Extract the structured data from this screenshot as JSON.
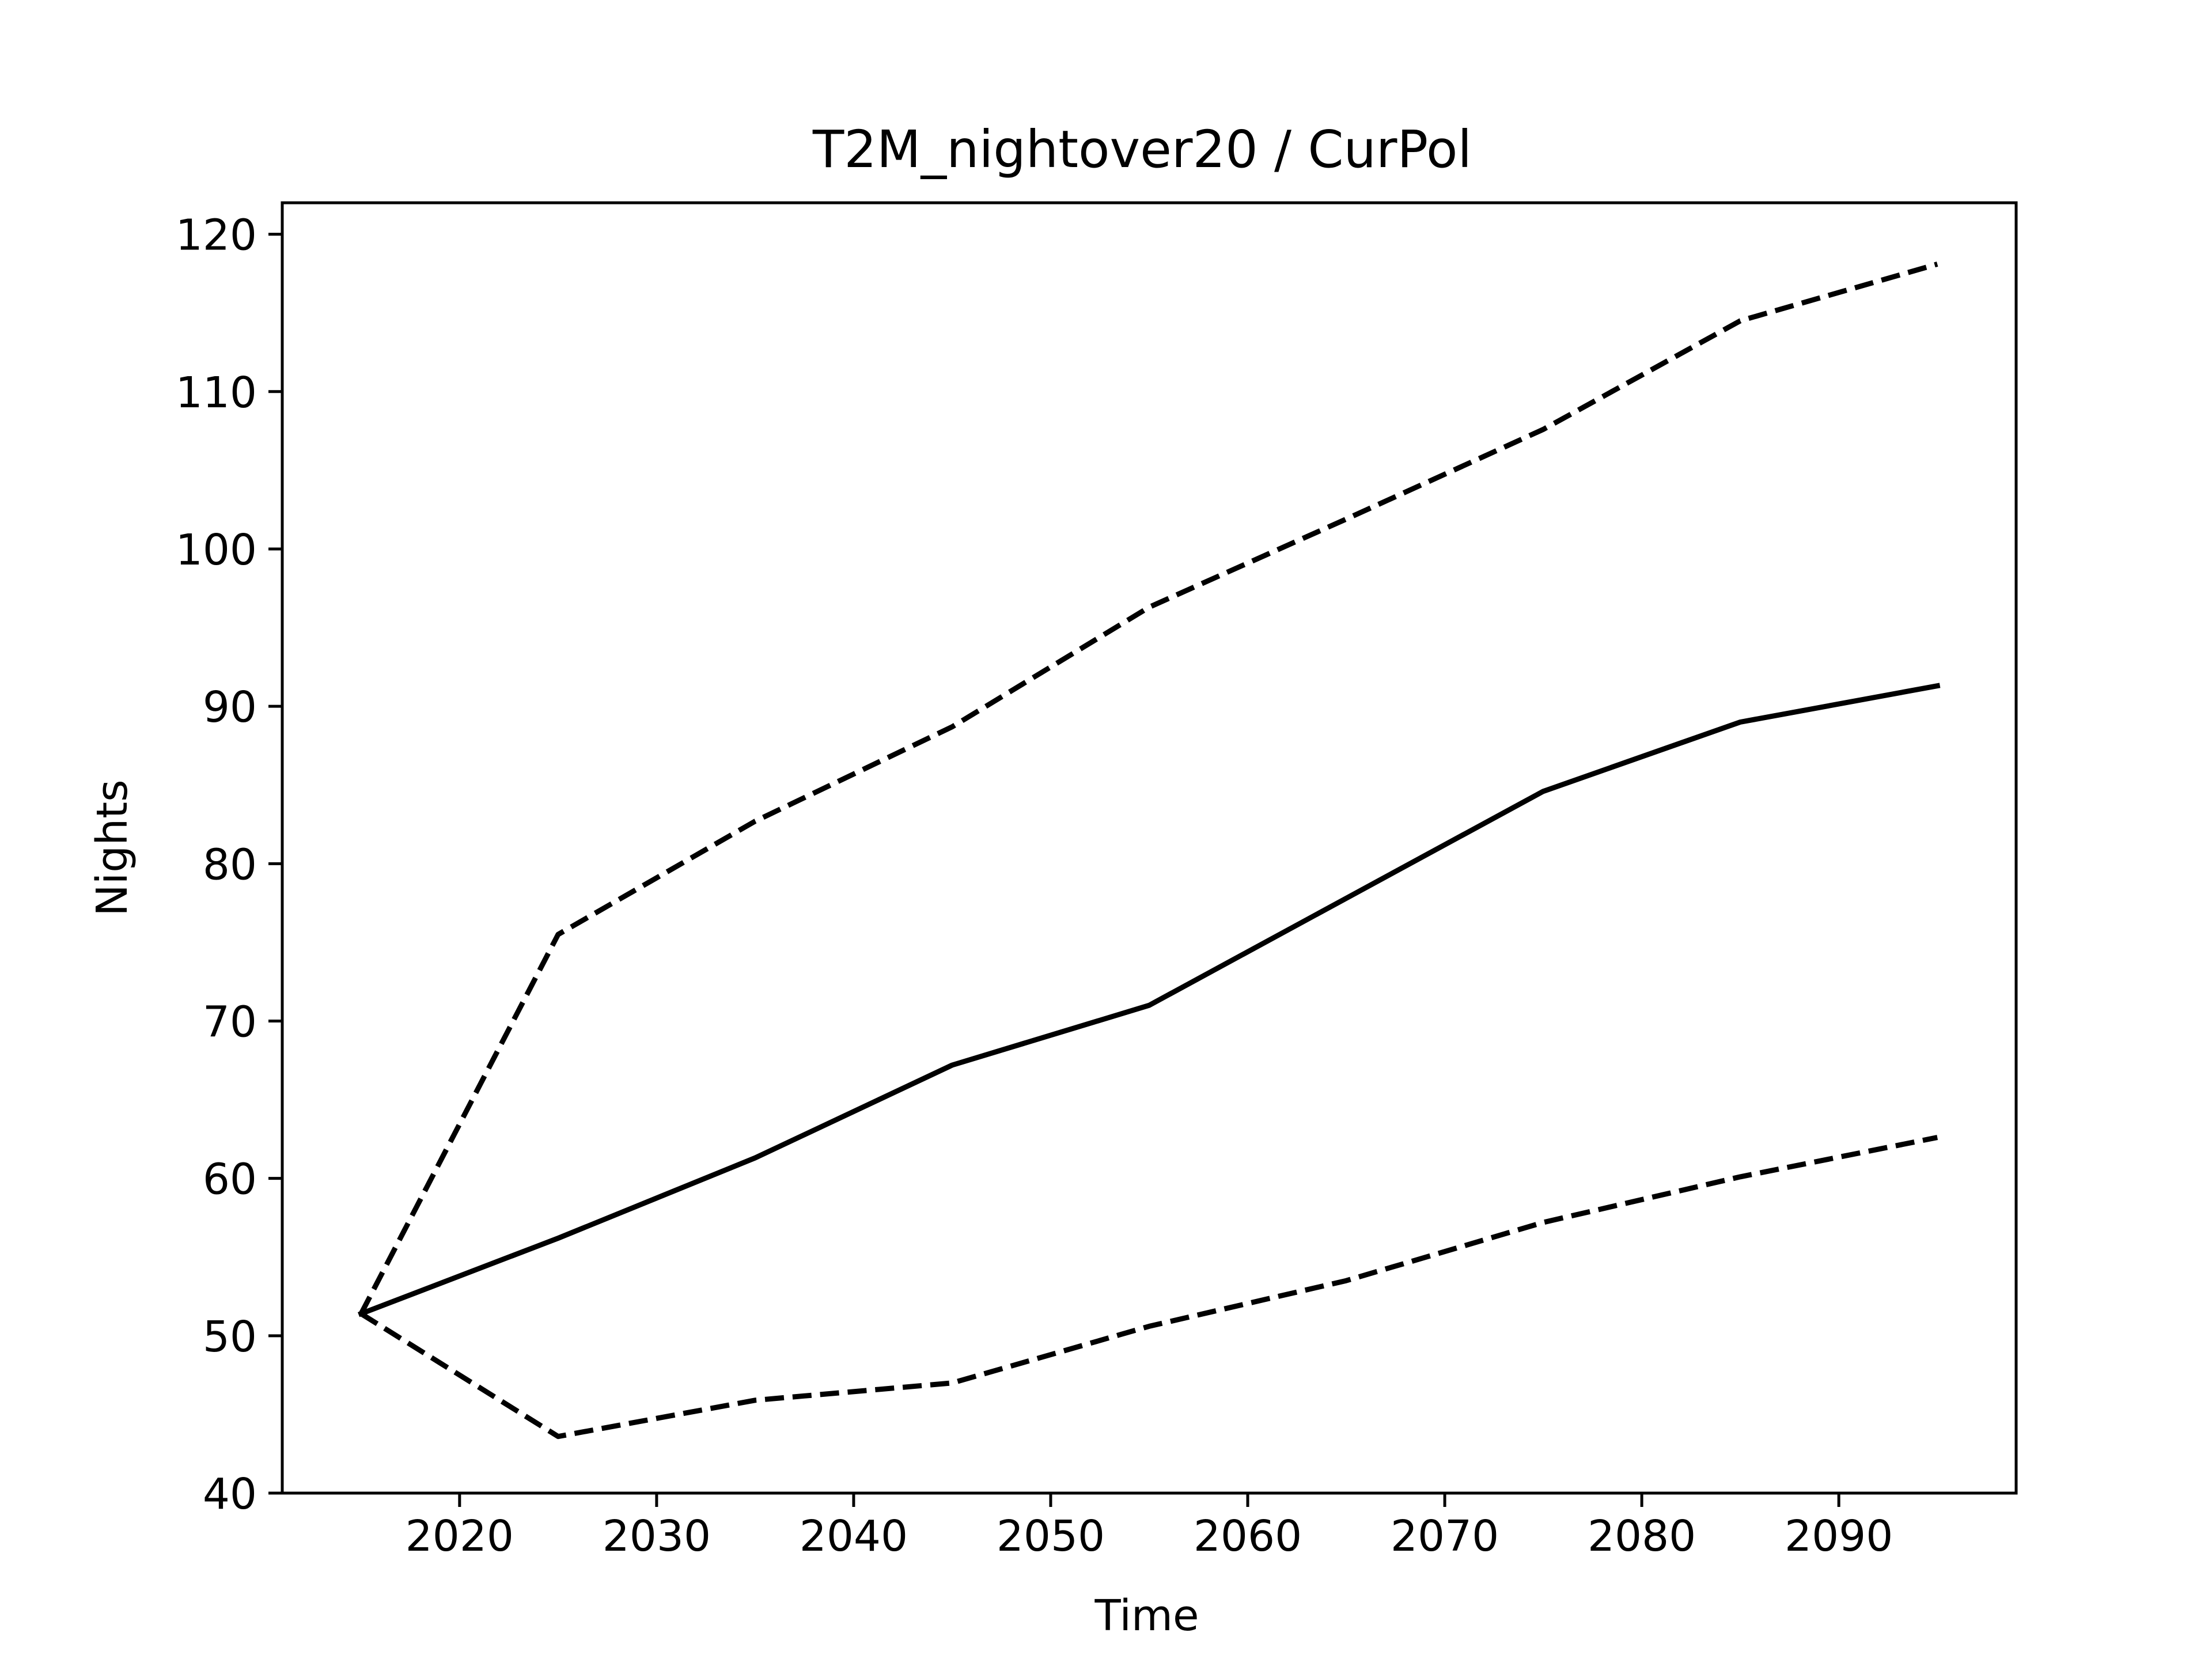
{
  "chart_data": {
    "type": "line",
    "title": "T2M_nightover20 / CurPol",
    "xlabel": "Time",
    "ylabel": "Nights",
    "xlim": [
      2011,
      2099
    ],
    "ylim": [
      40,
      122
    ],
    "xticks": [
      2020,
      2030,
      2040,
      2050,
      2060,
      2070,
      2080,
      2090
    ],
    "yticks": [
      40,
      50,
      60,
      70,
      80,
      90,
      100,
      110,
      120
    ],
    "grid": false,
    "legend": "none",
    "x": [
      2015,
      2025,
      2035,
      2045,
      2055,
      2065,
      2075,
      2085,
      2095
    ],
    "series": [
      {
        "style": "solid",
        "color": "#000000",
        "values": [
          51.4,
          56.2,
          61.3,
          67.2,
          71.0,
          77.8,
          84.6,
          89.0,
          91.3
        ]
      },
      {
        "style": "dashed",
        "color": "#000000",
        "values": [
          51.4,
          75.5,
          82.7,
          88.7,
          96.3,
          101.9,
          107.6,
          114.5,
          118.1
        ]
      },
      {
        "style": "dashed",
        "color": "#000000",
        "values": [
          51.4,
          43.6,
          45.9,
          47.0,
          50.6,
          53.5,
          57.2,
          60.1,
          62.6
        ]
      }
    ]
  }
}
